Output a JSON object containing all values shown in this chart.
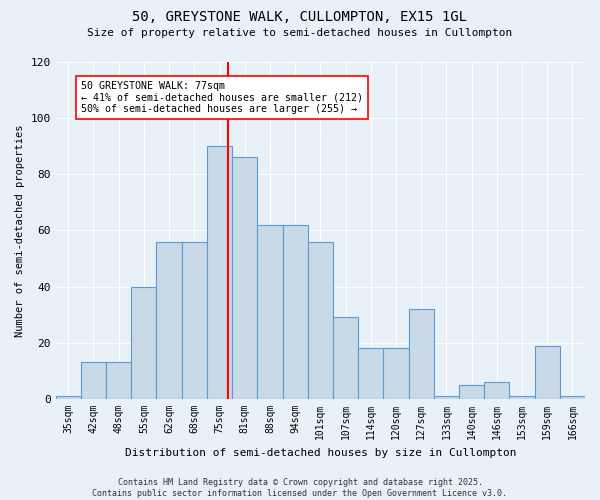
{
  "title": "50, GREYSTONE WALK, CULLOMPTON, EX15 1GL",
  "subtitle": "Size of property relative to semi-detached houses in Cullompton",
  "xlabel": "Distribution of semi-detached houses by size in Cullompton",
  "ylabel": "Number of semi-detached properties",
  "categories": [
    "35sqm",
    "42sqm",
    "48sqm",
    "55sqm",
    "62sqm",
    "68sqm",
    "75sqm",
    "81sqm",
    "88sqm",
    "94sqm",
    "101sqm",
    "107sqm",
    "114sqm",
    "120sqm",
    "127sqm",
    "133sqm",
    "140sqm",
    "146sqm",
    "153sqm",
    "159sqm",
    "166sqm"
  ],
  "bar_heights": [
    1,
    13,
    13,
    40,
    56,
    56,
    90,
    86,
    62,
    62,
    56,
    29,
    18,
    18,
    32,
    1,
    5,
    6,
    1,
    19,
    1
  ],
  "bar_color": "#c9d9e8",
  "bar_edge_color": "#5b9bd5",
  "vline_color": "red",
  "ylim": [
    0,
    120
  ],
  "yticks": [
    0,
    20,
    40,
    60,
    80,
    100,
    120
  ],
  "annotation_title": "50 GREYSTONE WALK: 77sqm",
  "annotation_line1": "← 41% of semi-detached houses are smaller (212)",
  "annotation_line2": "50% of semi-detached houses are larger (255) →",
  "bg_color": "#e8f0f8",
  "footer1": "Contains HM Land Registry data © Crown copyright and database right 2025.",
  "footer2": "Contains public sector information licensed under the Open Government Licence v3.0."
}
